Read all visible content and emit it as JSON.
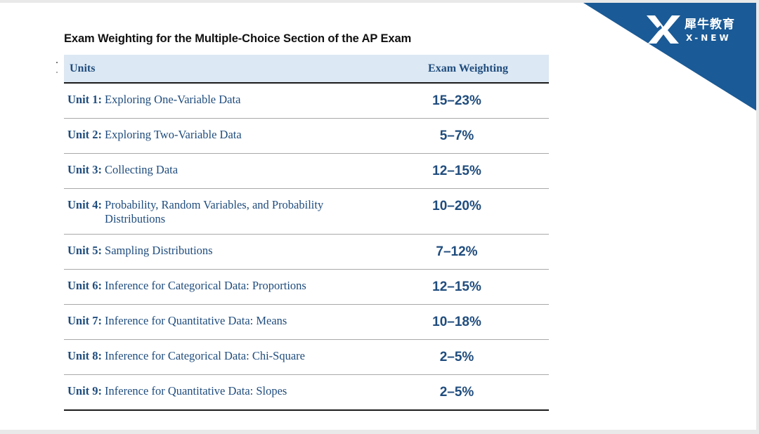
{
  "title": "Exam Weighting for the Multiple-Choice Section of the AP Exam",
  "brand": {
    "name_cn": "犀牛教育",
    "name_en": "X-NEW",
    "colors": {
      "corner": "#1a5a96",
      "header_bg": "#dce8f3",
      "text": "#1f4c7d"
    }
  },
  "table": {
    "headers": {
      "units": "Units",
      "weighting": "Exam Weighting"
    },
    "rows": [
      {
        "unit": "Unit 1:",
        "name": "Exploring One-Variable Data",
        "weight": "15–23%"
      },
      {
        "unit": "Unit 2:",
        "name": "Exploring Two-Variable Data",
        "weight": "5–7%"
      },
      {
        "unit": "Unit 3:",
        "name": "Collecting Data",
        "weight": "12–15%"
      },
      {
        "unit": "Unit 4:",
        "name": "Probability, Random Variables, and Probability Distributions",
        "weight": "10–20%"
      },
      {
        "unit": "Unit 5:",
        "name": "Sampling Distributions",
        "weight": "7–12%"
      },
      {
        "unit": "Unit 6:",
        "name": "Inference for Categorical Data: Proportions",
        "weight": "12–15%"
      },
      {
        "unit": "Unit 7:",
        "name": "Inference for Quantitative Data: Means",
        "weight": "10–18%"
      },
      {
        "unit": "Unit 8:",
        "name": "Inference for Categorical Data: Chi-Square",
        "weight": "2–5%"
      },
      {
        "unit": "Unit 9:",
        "name": "Inference for Quantitative Data: Slopes",
        "weight": "2–5%"
      }
    ]
  }
}
